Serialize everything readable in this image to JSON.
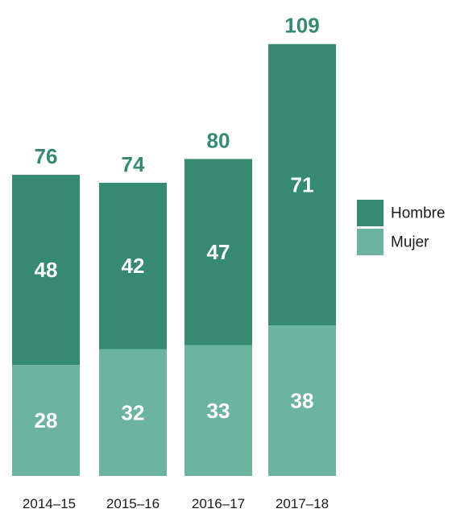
{
  "chart_data": {
    "type": "bar",
    "stacked": true,
    "categories": [
      "2014–15",
      "2015–16",
      "2016–17",
      "2017–18"
    ],
    "series": [
      {
        "name": "Mujer",
        "values": [
          28,
          32,
          33,
          38
        ],
        "color": "#6cb4a0"
      },
      {
        "name": "Hombre",
        "values": [
          48,
          42,
          47,
          71
        ],
        "color": "#378a72"
      }
    ],
    "totals": [
      76,
      74,
      80,
      109
    ],
    "total_label_color": "#378a72",
    "legend_order": [
      "Hombre",
      "Mujer"
    ],
    "legend_position": "right",
    "grid": false,
    "ylim": [
      0,
      109
    ]
  }
}
